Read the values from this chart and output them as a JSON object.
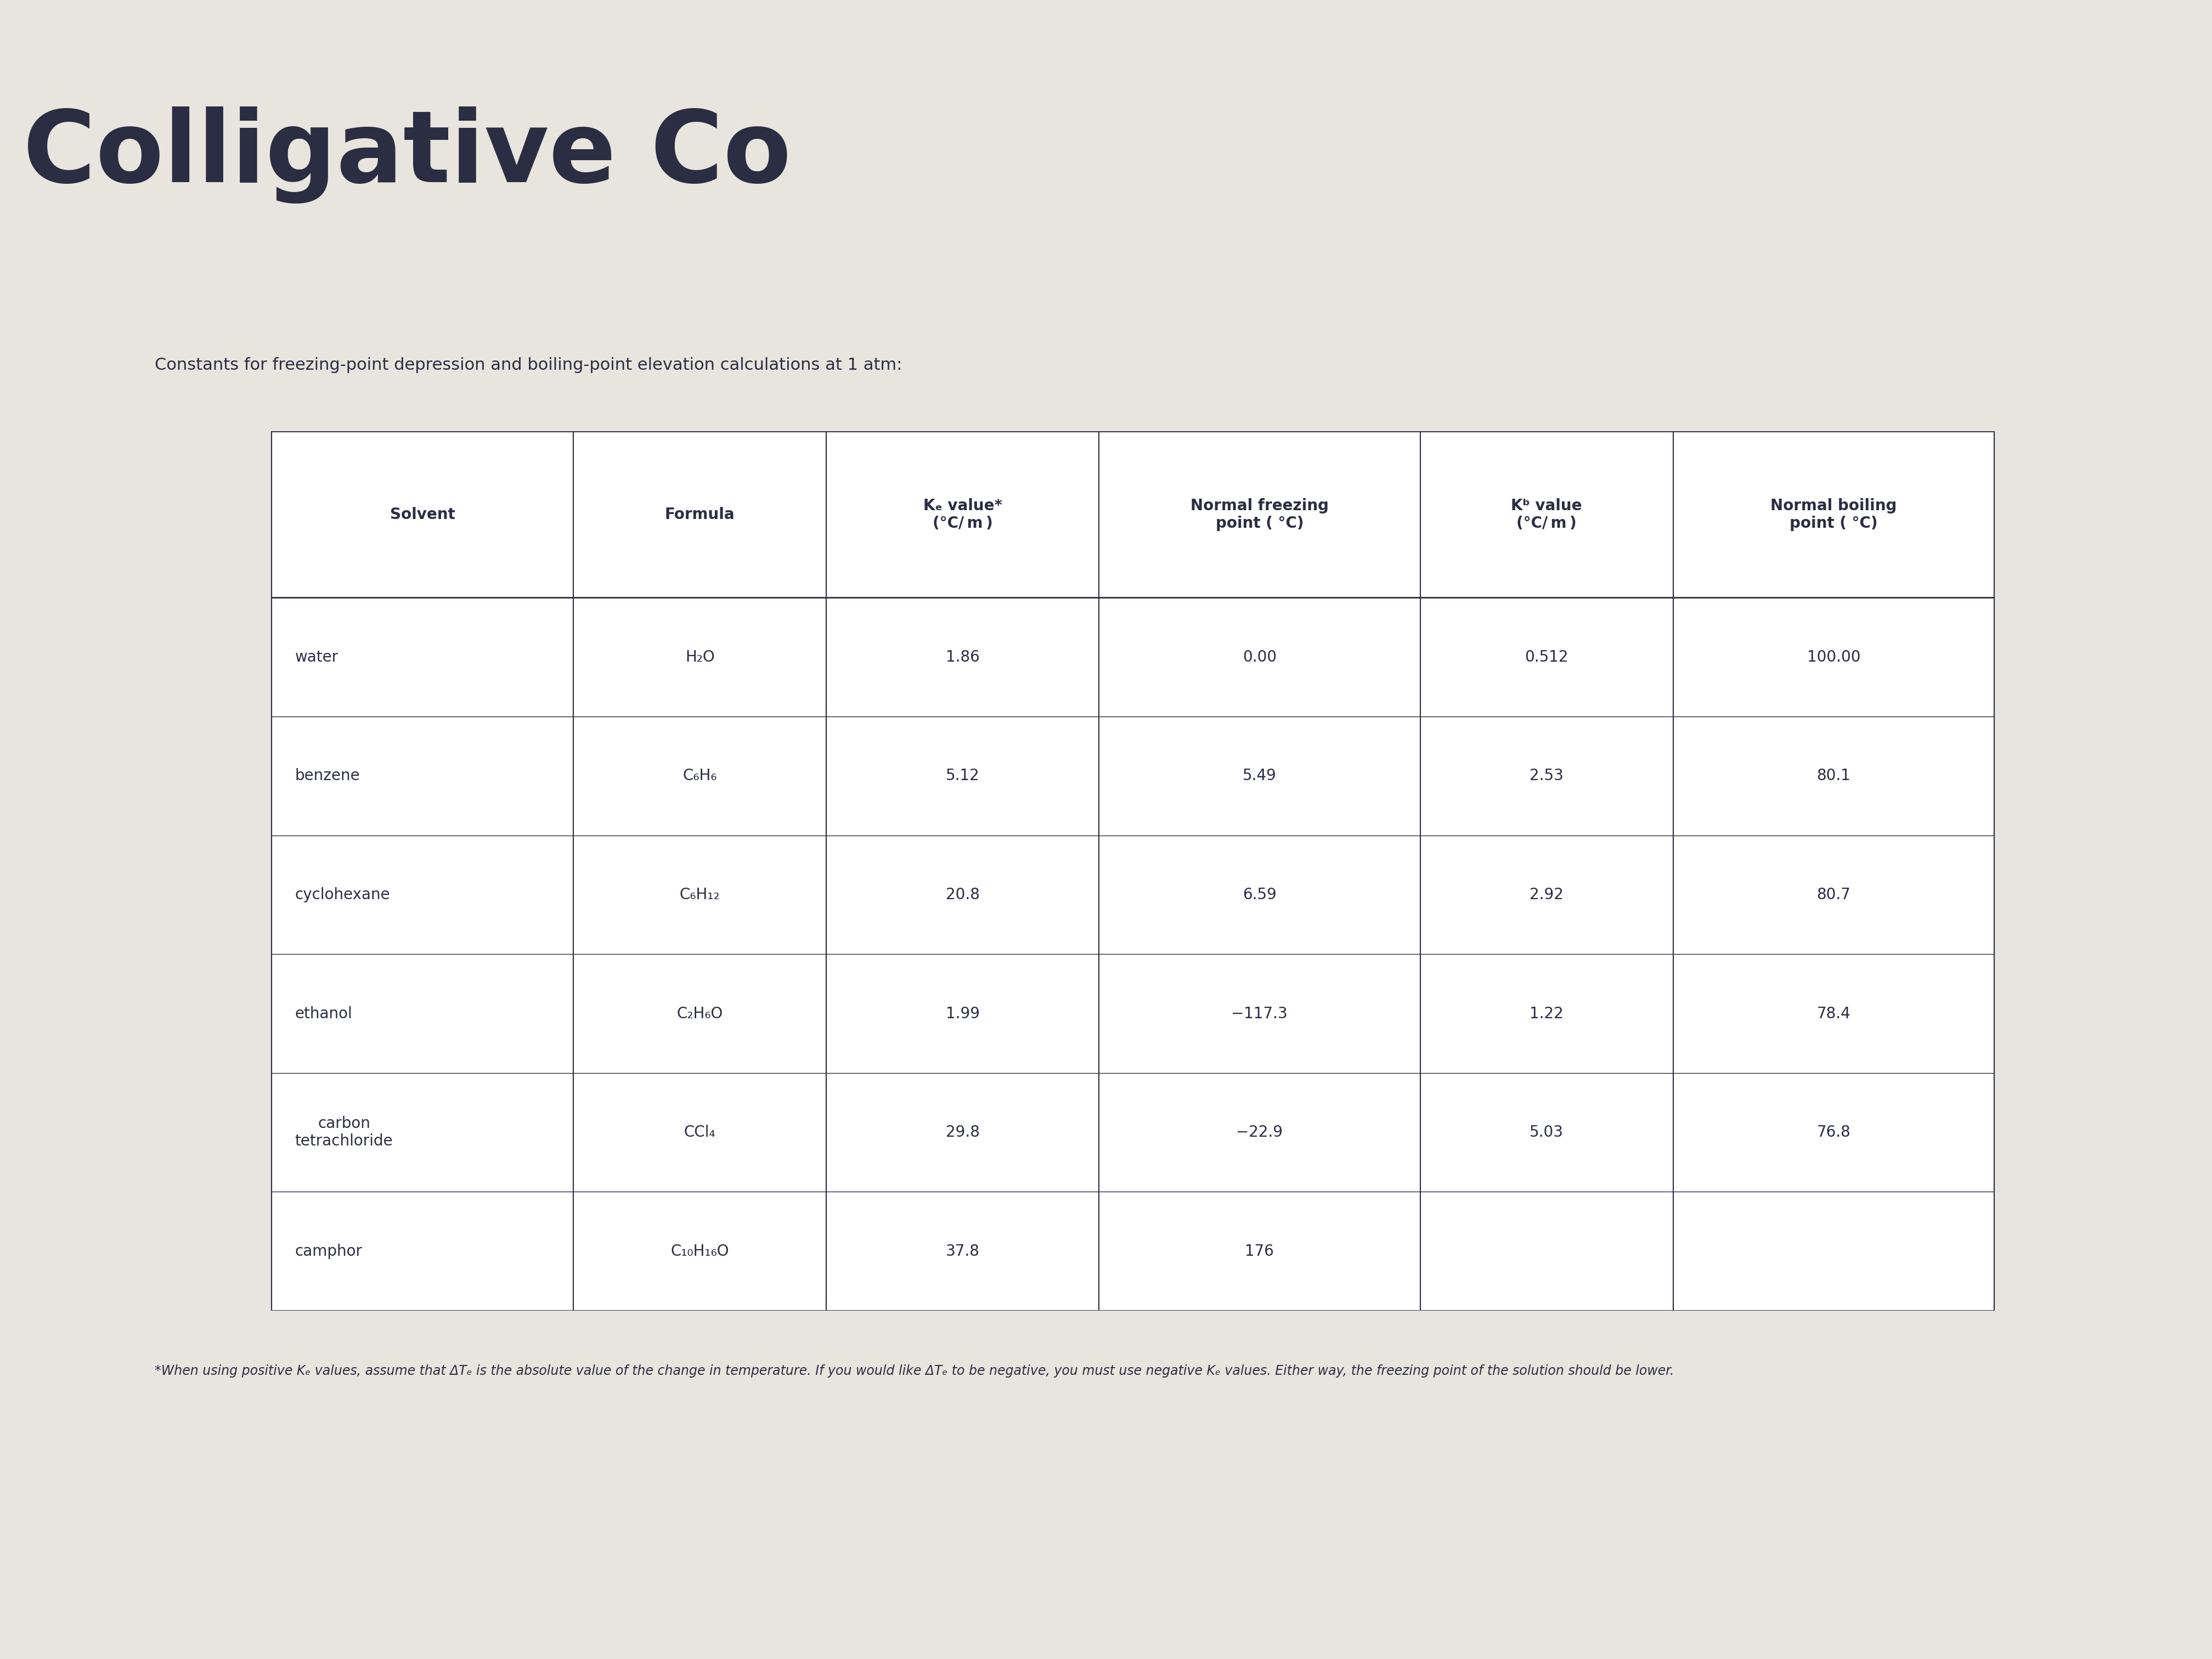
{
  "title": "Colligative Co",
  "subtitle": "Constants for freezing-point depression and boiling-point elevation calculations at 1 atm:",
  "col_headers": [
    "Solvent",
    "Formula",
    "Kₑ value*\n(°C/ m )",
    "Normal freezing\npoint ( °C)",
    "Kᵇ value\n(°C/ m )",
    "Normal boiling\npoint ( °C)"
  ],
  "rows": [
    [
      "water",
      "H₂O",
      "1.86",
      "0.00",
      "0.512",
      "100.00"
    ],
    [
      "benzene",
      "C₆H₆",
      "5.12",
      "5.49",
      "2.53",
      "80.1"
    ],
    [
      "cyclohexane",
      "C₆H₁₂",
      "20.8",
      "6.59",
      "2.92",
      "80.7"
    ],
    [
      "ethanol",
      "C₂H₆O",
      "1.99",
      "−117.3",
      "1.22",
      "78.4"
    ],
    [
      "carbon\ntetrachloride",
      "CCl₄",
      "29.8",
      "−22.9",
      "5.03",
      "76.8"
    ],
    [
      "camphor",
      "C₁₀H₁₆O",
      "37.8",
      "176",
      "",
      ""
    ]
  ],
  "footnote": "*When using positive Kₑ values, assume that ΔTₑ is the absolute value of the change in temperature. If you would like ΔTₑ to be negative, you must use negative Kₑ values. Either way, the freezing point of the solution should be lower.",
  "bg_color": "#e8e4de",
  "text_color": "#2b2d42",
  "table_bg": "#ffffff",
  "border_color": "#2b2d42",
  "title_fontsize": 130,
  "subtitle_fontsize": 22,
  "header_fontsize": 20,
  "cell_fontsize": 20,
  "footnote_fontsize": 17
}
